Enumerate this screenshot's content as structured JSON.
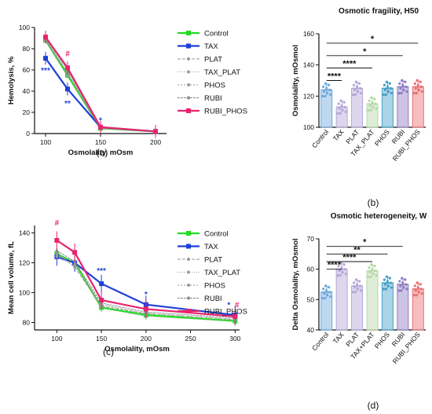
{
  "chart_data": [
    {
      "panel_label": "(a)",
      "type": "line",
      "title": "",
      "xlabel": "Osmolality, mOsm",
      "ylabel": "Hemolysis, %",
      "xlim": [
        90,
        210
      ],
      "ylim": [
        0,
        100
      ],
      "xticks": [
        100,
        150,
        200
      ],
      "yticks": [
        0,
        20,
        40,
        60,
        80,
        100
      ],
      "legend_position": "right",
      "x": [
        100,
        120,
        150,
        200
      ],
      "series": [
        {
          "name": "Control",
          "color": "#22dd22",
          "values": [
            88,
            55,
            5,
            2
          ]
        },
        {
          "name": "TAX",
          "color": "#1f3fd6",
          "values": [
            71,
            42,
            6,
            2
          ]
        },
        {
          "name": "PLAT",
          "color": "#999999",
          "values": [
            89,
            57,
            5,
            2
          ]
        },
        {
          "name": "TAX_PLAT",
          "color": "#999999",
          "values": [
            87,
            54,
            5,
            2
          ]
        },
        {
          "name": "PHOS",
          "color": "#999999",
          "values": [
            88,
            58,
            5,
            2
          ]
        },
        {
          "name": "RUBI",
          "color": "#888888",
          "values": [
            90,
            60,
            5,
            2
          ]
        },
        {
          "name": "RUBI_PHOS",
          "color": "#e8246d",
          "values": [
            91,
            62,
            6,
            2
          ]
        }
      ],
      "annotations": [
        {
          "text": "***",
          "x": 100,
          "y": 57,
          "color": "#1f3fd6"
        },
        {
          "text": "#",
          "x": 120,
          "y": 73,
          "color": "#e8246d"
        },
        {
          "text": "**",
          "x": 120,
          "y": 26,
          "color": "#1f3fd6"
        },
        {
          "text": "*",
          "x": 150,
          "y": 10,
          "color": "#1f3fd6"
        }
      ]
    },
    {
      "panel_label": "(b)",
      "type": "bar",
      "title": "Osmotic fragility, H50",
      "xlabel": "",
      "ylabel": "Osmolality, mOsmol",
      "ylim": [
        100,
        160
      ],
      "yticks": [
        100,
        120,
        140,
        160
      ],
      "categories": [
        "Control",
        "TAX",
        "PLAT",
        "TAX_PLAT",
        "PHOS",
        "RUBI",
        "RUBI_PHOS"
      ],
      "values": [
        124,
        113,
        125,
        115,
        125,
        126,
        126
      ],
      "colors": [
        "#6fa8dc",
        "#b4a7d6",
        "#b4a7d6",
        "#b6d7a8",
        "#45a0c8",
        "#8e7cc3",
        "#ea6f6f"
      ],
      "significance": [
        {
          "text": "*",
          "from": "Control",
          "to": "RUBI_PHOS",
          "y": 154
        },
        {
          "text": "*",
          "from": "Control",
          "to": "RUBI",
          "y": 146
        },
        {
          "text": "****",
          "from": "Control",
          "to": "TAX_PLAT",
          "y": 138
        },
        {
          "text": "****",
          "from": "Control",
          "to": "TAX",
          "y": 130
        }
      ]
    },
    {
      "panel_label": "(c)",
      "type": "line",
      "title": "",
      "xlabel": "Osmolality, mOsm",
      "ylabel": "Mean cell volume, fL",
      "xlim": [
        75,
        305
      ],
      "ylim": [
        75,
        145
      ],
      "xticks": [
        100,
        150,
        200,
        250,
        300
      ],
      "yticks": [
        80,
        100,
        120,
        140
      ],
      "legend_position": "right",
      "x": [
        100,
        120,
        150,
        200,
        300
      ],
      "series": [
        {
          "name": "Control",
          "color": "#22dd22",
          "values": [
            126,
            120,
            90,
            85,
            81
          ]
        },
        {
          "name": "TAX",
          "color": "#1f3fd6",
          "values": [
            124,
            120,
            106,
            92,
            85
          ]
        },
        {
          "name": "PLAT",
          "color": "#999999",
          "values": [
            127,
            117,
            91,
            86,
            82
          ]
        },
        {
          "name": "TAX_PLAT",
          "color": "#999999",
          "values": [
            124,
            118,
            90,
            84,
            81
          ]
        },
        {
          "name": "PHOS",
          "color": "#999999",
          "values": [
            125,
            119,
            92,
            86,
            82
          ]
        },
        {
          "name": "RUBI",
          "color": "#888888",
          "values": [
            128,
            121,
            93,
            87,
            83
          ]
        },
        {
          "name": "RUBI_PHOS",
          "color": "#e8246d",
          "values": [
            135,
            127,
            95,
            89,
            84
          ]
        }
      ],
      "annotations": [
        {
          "text": "#",
          "x": 100,
          "y": 145,
          "color": "#e8246d"
        },
        {
          "text": "***",
          "x": 150,
          "y": 113,
          "color": "#1f3fd6"
        },
        {
          "text": "*",
          "x": 200,
          "y": 97,
          "color": "#1f3fd6"
        },
        {
          "text": "*",
          "x": 293,
          "y": 90,
          "color": "#1f3fd6"
        },
        {
          "text": "#",
          "x": 302,
          "y": 90,
          "color": "#e8246d"
        }
      ]
    },
    {
      "panel_label": "(d)",
      "type": "bar",
      "title": "Osmotic heterogeneity, W",
      "xlabel": "",
      "ylabel": "Delta Osmolality, mOsmol",
      "ylim": [
        40,
        70
      ],
      "yticks": [
        40,
        50,
        60,
        70
      ],
      "categories": [
        "Control",
        "TAX",
        "PLAT",
        "TAX+PLAT",
        "PHOS",
        "RUBI",
        "RUBI_PHOS"
      ],
      "values": [
        52.5,
        60,
        54.5,
        59.5,
        55.5,
        55,
        53.5
      ],
      "colors": [
        "#6fa8dc",
        "#b4a7d6",
        "#b4a7d6",
        "#b6d7a8",
        "#45a0c8",
        "#8e7cc3",
        "#ea6f6f"
      ],
      "significance": [
        {
          "text": "*",
          "from": "Control",
          "to": "RUBI",
          "y": 67.5
        },
        {
          "text": "**",
          "from": "Control",
          "to": "PHOS",
          "y": 65
        },
        {
          "text": "****",
          "from": "Control",
          "to": "TAX+PLAT",
          "y": 62.5
        },
        {
          "text": "****",
          "from": "Control",
          "to": "TAX",
          "y": 60
        }
      ]
    }
  ]
}
